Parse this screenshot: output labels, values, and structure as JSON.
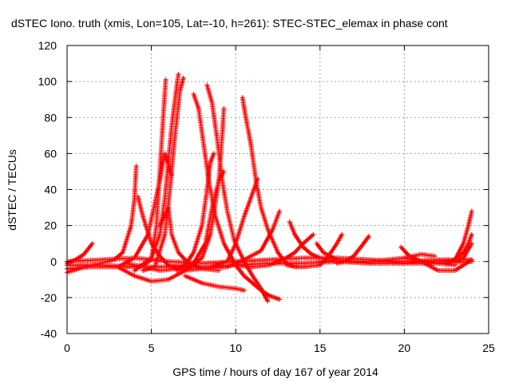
{
  "chart_data": {
    "type": "scatter",
    "title": "dSTEC Iono. truth (xmis, Lon=105, Lat=-10, h=261): STEC-STEC_elemax in phase cont",
    "xlabel": "GPS time / hours of day 167 of year 2014",
    "ylabel": "dSTEC  / TECUs",
    "xlim": [
      0,
      25
    ],
    "ylim": [
      -40,
      120
    ],
    "x_ticks": [
      0,
      5,
      10,
      15,
      20,
      25
    ],
    "y_ticks": [
      -40,
      -20,
      0,
      20,
      40,
      60,
      80,
      100,
      120
    ],
    "grid": true,
    "marker": "plus",
    "color": "#ff0000",
    "series": [
      {
        "points": [
          [
            0.0,
            -1
          ],
          [
            0.5,
            1
          ],
          [
            1.0,
            4
          ],
          [
            1.5,
            10
          ]
        ]
      },
      {
        "points": [
          [
            0.0,
            -6
          ],
          [
            1.0,
            -3
          ],
          [
            2.0,
            -1
          ],
          [
            2.8,
            1
          ],
          [
            3.3,
            5
          ],
          [
            3.8,
            20
          ],
          [
            4.0,
            35
          ],
          [
            4.1,
            53
          ]
        ]
      },
      {
        "points": [
          [
            0.0,
            -4
          ],
          [
            1.5,
            -3
          ],
          [
            3.0,
            -3
          ],
          [
            4.0,
            2
          ],
          [
            4.8,
            15
          ],
          [
            5.5,
            45
          ],
          [
            5.8,
            60
          ],
          [
            6.0,
            54
          ],
          [
            6.2,
            48
          ]
        ]
      },
      {
        "points": [
          [
            4.2,
            36
          ],
          [
            4.5,
            25
          ],
          [
            5.0,
            10
          ],
          [
            5.5,
            3
          ],
          [
            6.0,
            -2
          ],
          [
            7.0,
            -5
          ],
          [
            8.0,
            -4
          ],
          [
            9.5,
            -3
          ]
        ]
      },
      {
        "points": [
          [
            3.0,
            -3
          ],
          [
            4.0,
            -8
          ],
          [
            5.0,
            -11
          ],
          [
            6.0,
            -10
          ],
          [
            7.0,
            -5
          ],
          [
            8.0,
            2
          ],
          [
            8.5,
            15
          ],
          [
            9.0,
            45
          ],
          [
            9.2,
            70
          ],
          [
            9.3,
            85
          ]
        ]
      },
      {
        "points": [
          [
            3.5,
            -3
          ],
          [
            4.5,
            -2
          ],
          [
            5.0,
            1
          ],
          [
            5.3,
            20
          ],
          [
            5.5,
            50
          ],
          [
            5.7,
            80
          ],
          [
            5.85,
            101
          ]
        ]
      },
      {
        "points": [
          [
            4.0,
            -5
          ],
          [
            5.0,
            2
          ],
          [
            5.5,
            15
          ],
          [
            5.8,
            35
          ],
          [
            6.0,
            55
          ],
          [
            6.2,
            75
          ],
          [
            6.4,
            90
          ],
          [
            6.6,
            104
          ]
        ]
      },
      {
        "points": [
          [
            4.5,
            -5
          ],
          [
            5.2,
            -3
          ],
          [
            5.8,
            15
          ],
          [
            6.1,
            40
          ],
          [
            6.4,
            70
          ],
          [
            6.7,
            95
          ],
          [
            6.9,
            102
          ]
        ]
      },
      {
        "points": [
          [
            5.5,
            20
          ],
          [
            6.0,
            30
          ],
          [
            6.2,
            15
          ],
          [
            6.6,
            5
          ],
          [
            7.2,
            -1
          ],
          [
            8.0,
            -4
          ],
          [
            9.0,
            -5
          ]
        ]
      },
      {
        "points": [
          [
            3.5,
            -1
          ],
          [
            4.5,
            -3
          ],
          [
            5.5,
            -5
          ],
          [
            6.5,
            -4
          ],
          [
            7.5,
            -1
          ],
          [
            8.2,
            10
          ],
          [
            8.6,
            30
          ],
          [
            9.0,
            45
          ],
          [
            9.3,
            50
          ]
        ]
      },
      {
        "points": [
          [
            6.0,
            -3
          ],
          [
            7.0,
            -2
          ],
          [
            7.5,
            5
          ],
          [
            8.0,
            20
          ],
          [
            8.3,
            40
          ],
          [
            8.5,
            55
          ],
          [
            8.7,
            60
          ]
        ]
      },
      {
        "points": [
          [
            7.5,
            93
          ],
          [
            7.8,
            85
          ],
          [
            8.1,
            65
          ],
          [
            8.4,
            45
          ],
          [
            8.8,
            25
          ],
          [
            9.3,
            10
          ],
          [
            10.0,
            -2
          ],
          [
            10.5,
            -8
          ],
          [
            11.0,
            -12
          ],
          [
            11.5,
            -16
          ],
          [
            12.0,
            -19
          ],
          [
            12.6,
            -21
          ]
        ]
      },
      {
        "points": [
          [
            8.3,
            98
          ],
          [
            8.6,
            88
          ],
          [
            8.9,
            68
          ],
          [
            9.2,
            45
          ],
          [
            9.5,
            28
          ],
          [
            9.9,
            12
          ],
          [
            10.5,
            0
          ],
          [
            11.0,
            -8
          ],
          [
            11.5,
            -15
          ],
          [
            11.9,
            -22
          ]
        ]
      },
      {
        "points": [
          [
            10.4,
            91
          ],
          [
            10.6,
            80
          ],
          [
            10.9,
            65
          ],
          [
            11.2,
            45
          ],
          [
            11.5,
            30
          ],
          [
            11.9,
            18
          ],
          [
            12.5,
            5
          ],
          [
            13.0,
            -1
          ],
          [
            13.5,
            -3
          ],
          [
            14.0,
            -3
          ]
        ]
      },
      {
        "points": [
          [
            7.0,
            -8
          ],
          [
            8.0,
            -12
          ],
          [
            9.0,
            -14
          ],
          [
            10.0,
            -15
          ],
          [
            10.5,
            -16
          ]
        ]
      },
      {
        "points": [
          [
            6.5,
            -5
          ],
          [
            7.5,
            -3
          ],
          [
            8.5,
            -3
          ],
          [
            9.5,
            0
          ],
          [
            10.0,
            10
          ],
          [
            10.5,
            25
          ],
          [
            11.0,
            38
          ],
          [
            11.3,
            46
          ]
        ]
      },
      {
        "points": [
          [
            9.5,
            -3
          ],
          [
            10.5,
            1
          ],
          [
            11.5,
            6
          ],
          [
            12.2,
            18
          ],
          [
            12.6,
            28
          ]
        ]
      },
      {
        "points": [
          [
            10.0,
            -2
          ],
          [
            11.0,
            -3
          ],
          [
            12.0,
            -2
          ],
          [
            13.0,
            2
          ],
          [
            13.5,
            5
          ],
          [
            14.0,
            10
          ],
          [
            14.6,
            15
          ]
        ]
      },
      {
        "points": [
          [
            13.0,
            -2
          ],
          [
            14.0,
            -3
          ],
          [
            15.0,
            -2
          ],
          [
            15.5,
            3
          ],
          [
            16.0,
            10
          ],
          [
            16.3,
            15
          ]
        ]
      },
      {
        "points": [
          [
            13.2,
            22
          ],
          [
            13.5,
            15
          ],
          [
            14.0,
            8
          ],
          [
            14.5,
            4
          ],
          [
            15.0,
            2
          ],
          [
            16.0,
            0
          ],
          [
            17.0,
            0
          ],
          [
            18.0,
            -1
          ]
        ]
      },
      {
        "points": [
          [
            14.8,
            10
          ],
          [
            15.2,
            5
          ],
          [
            16.0,
            1
          ],
          [
            17.0,
            0
          ],
          [
            18.0,
            0
          ],
          [
            19.0,
            0
          ],
          [
            20.0,
            -1
          ],
          [
            21.0,
            0
          ],
          [
            22.0,
            0
          ]
        ]
      },
      {
        "points": [
          [
            16.0,
            -1
          ],
          [
            16.5,
            0
          ],
          [
            17.0,
            3
          ],
          [
            17.5,
            9
          ],
          [
            17.9,
            14
          ]
        ]
      },
      {
        "points": [
          [
            15.0,
            0
          ],
          [
            16.0,
            0
          ],
          [
            17.0,
            0
          ],
          [
            18.0,
            0
          ],
          [
            19.0,
            1
          ],
          [
            20.0,
            2
          ],
          [
            21.0,
            4
          ],
          [
            21.8,
            3
          ]
        ]
      },
      {
        "points": [
          [
            19.8,
            8
          ],
          [
            20.3,
            3
          ],
          [
            21.0,
            0
          ],
          [
            22.0,
            -1
          ],
          [
            23.0,
            -2
          ]
        ]
      },
      {
        "points": [
          [
            20.0,
            2
          ],
          [
            21.0,
            0
          ],
          [
            22.0,
            -5
          ],
          [
            23.0,
            -5
          ],
          [
            23.5,
            -2
          ],
          [
            24.0,
            1
          ]
        ]
      },
      {
        "points": [
          [
            20.0,
            0
          ],
          [
            21.0,
            0
          ],
          [
            22.0,
            0
          ],
          [
            23.0,
            1
          ],
          [
            23.5,
            10
          ],
          [
            23.8,
            20
          ],
          [
            24.0,
            28
          ]
        ]
      },
      {
        "points": [
          [
            22.5,
            -1
          ],
          [
            23.0,
            1
          ],
          [
            23.5,
            5
          ],
          [
            23.8,
            10
          ],
          [
            24.0,
            15
          ]
        ]
      },
      {
        "points": [
          [
            22.0,
            0
          ],
          [
            23.0,
            0
          ],
          [
            23.5,
            2
          ],
          [
            24.0,
            10
          ]
        ]
      },
      {
        "points": [
          [
            0.0,
            -2
          ],
          [
            2.0,
            -2
          ],
          [
            4.0,
            -3
          ],
          [
            6.0,
            -3
          ],
          [
            8.0,
            -3
          ],
          [
            10.0,
            -2
          ],
          [
            12.0,
            -1
          ],
          [
            14.0,
            -1
          ],
          [
            16.0,
            0
          ],
          [
            18.0,
            -1
          ],
          [
            20.0,
            -1
          ],
          [
            22.0,
            -1
          ],
          [
            24.0,
            0
          ]
        ]
      },
      {
        "points": [
          [
            0.0,
            0
          ],
          [
            2.0,
            1
          ],
          [
            4.0,
            2
          ],
          [
            6.0,
            0
          ],
          [
            8.0,
            -1
          ],
          [
            10.0,
            0
          ],
          [
            12.0,
            1
          ],
          [
            14.0,
            2
          ],
          [
            16.0,
            2
          ],
          [
            18.0,
            1
          ],
          [
            20.0,
            0
          ],
          [
            22.0,
            1
          ],
          [
            24.0,
            1
          ]
        ]
      }
    ]
  }
}
